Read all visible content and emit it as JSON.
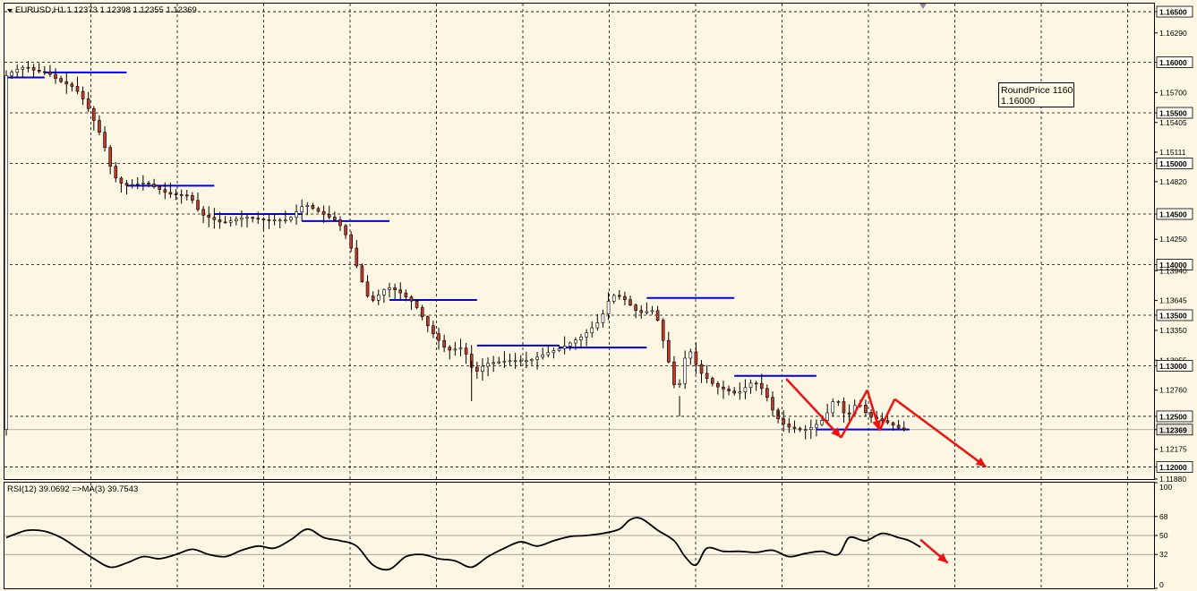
{
  "chart_data": [
    {
      "type": "candlestick",
      "header": "EURUSD,H1  1.12373 1.12398 1.12355 1.12369",
      "ylim": [
        1.1188,
        1.1658
      ],
      "y_tick_labels": [
        "1.16500",
        "1.16290",
        "1.16000",
        "1.15700",
        "1.15500",
        "1.15405",
        "1.15111",
        "1.15000",
        "1.14820",
        "1.14500",
        "1.14250",
        "1.14000",
        "1.13940",
        "1.13645",
        "1.13500",
        "1.13350",
        "1.13055",
        "1.13000",
        "1.12760",
        "1.12500",
        "1.12369",
        "1.12175",
        "1.12000",
        "1.11880"
      ],
      "round_levels": [
        1.165,
        1.16,
        1.155,
        1.15,
        1.145,
        1.14,
        1.135,
        1.13,
        1.125,
        1.12
      ],
      "current_price": "1.12369",
      "annotation": {
        "line1": "RoundPrice 1160",
        "line2": "1.16000"
      },
      "path_points": [
        [
          0,
          1.1585
        ],
        [
          2,
          1.1592
        ],
        [
          4,
          1.1596
        ],
        [
          6,
          1.1591
        ],
        [
          8,
          1.159
        ],
        [
          10,
          1.1582
        ],
        [
          13,
          1.1575
        ],
        [
          15,
          1.156
        ],
        [
          18,
          1.1525
        ],
        [
          20,
          1.1488
        ],
        [
          22,
          1.1478
        ],
        [
          26,
          1.1481
        ],
        [
          30,
          1.147
        ],
        [
          34,
          1.1468
        ],
        [
          36,
          1.145
        ],
        [
          40,
          1.1441
        ],
        [
          44,
          1.1447
        ],
        [
          48,
          1.1444
        ],
        [
          52,
          1.1444
        ],
        [
          55,
          1.146
        ],
        [
          58,
          1.1451
        ],
        [
          61,
          1.1443
        ],
        [
          63,
          1.1425
        ],
        [
          65,
          1.139
        ],
        [
          67,
          1.1362
        ],
        [
          70,
          1.1378
        ],
        [
          72,
          1.1374
        ],
        [
          75,
          1.1362
        ],
        [
          78,
          1.1335
        ],
        [
          81,
          1.1315
        ],
        [
          84,
          1.1318
        ],
        [
          86,
          1.1292
        ],
        [
          88,
          1.1302
        ],
        [
          92,
          1.1305
        ],
        [
          96,
          1.1305
        ],
        [
          99,
          1.1312
        ],
        [
          102,
          1.1318
        ],
        [
          106,
          1.133
        ],
        [
          109,
          1.1345
        ],
        [
          111,
          1.137
        ],
        [
          113,
          1.1368
        ],
        [
          116,
          1.1352
        ],
        [
          119,
          1.1355
        ],
        [
          121,
          1.1315
        ],
        [
          123,
          1.127
        ],
        [
          125,
          1.132
        ],
        [
          127,
          1.1295
        ],
        [
          130,
          1.128
        ],
        [
          134,
          1.1272
        ],
        [
          137,
          1.1285
        ],
        [
          139,
          1.1275
        ],
        [
          141,
          1.125
        ],
        [
          143,
          1.124
        ],
        [
          146,
          1.1236
        ],
        [
          148,
          1.124
        ],
        [
          150,
          1.1248
        ],
        [
          152,
          1.127
        ],
        [
          154,
          1.1248
        ],
        [
          156,
          1.1265
        ],
        [
          158,
          1.125
        ],
        [
          161,
          1.1245
        ],
        [
          163,
          1.124
        ],
        [
          164,
          1.1237
        ]
      ],
      "support_resistance": [
        [
          0,
          7,
          1.1585
        ],
        [
          7,
          22,
          1.159
        ],
        [
          22,
          38,
          1.1478
        ],
        [
          38,
          54,
          1.145
        ],
        [
          54,
          70,
          1.1443
        ],
        [
          70,
          86,
          1.1365
        ],
        [
          86,
          101,
          1.132
        ],
        [
          101,
          117,
          1.1318
        ],
        [
          117,
          133,
          1.1367
        ],
        [
          133,
          148,
          1.129
        ],
        [
          148,
          165,
          1.1237
        ]
      ],
      "projection": [
        [
          142.5,
          1.1287
        ],
        [
          152.5,
          1.1229
        ],
        [
          157.3,
          1.1276
        ],
        [
          159.5,
          1.1236
        ],
        [
          162.3,
          1.1267
        ],
        [
          179,
          1.12
        ]
      ],
      "x_max": 210
    },
    {
      "type": "line",
      "title": "RSI(12) 39.0692  =>MA(3) 39.7543",
      "ylim": [
        0,
        100
      ],
      "y_tick_labels": [
        "100",
        "68",
        "50",
        "32",
        "0"
      ],
      "levels": [
        68,
        50,
        32
      ],
      "x": [
        0,
        2,
        4,
        7,
        10,
        13,
        16,
        19,
        22,
        25,
        28,
        31,
        34,
        37,
        40,
        43,
        46,
        49,
        52,
        55,
        58,
        61,
        64,
        67,
        70,
        73,
        76,
        79,
        82,
        85,
        88,
        91,
        94,
        97,
        100,
        103,
        106,
        109,
        112,
        114,
        116,
        119,
        122,
        124,
        126,
        128,
        131,
        134,
        137,
        140,
        143,
        146,
        149,
        152,
        154,
        157,
        160,
        163,
        165,
        167
      ],
      "values": [
        48,
        52,
        55,
        54,
        48,
        38,
        28,
        20,
        24,
        30,
        28,
        32,
        37,
        32,
        30,
        36,
        40,
        38,
        46,
        56,
        48,
        45,
        40,
        22,
        18,
        30,
        32,
        28,
        26,
        20,
        30,
        38,
        44,
        40,
        45,
        49,
        50,
        52,
        56,
        65,
        66,
        55,
        45,
        30,
        22,
        38,
        35,
        35,
        34,
        36,
        30,
        33,
        35,
        32,
        48,
        45,
        52,
        48,
        45,
        39
      ],
      "projection": [
        [
          167,
          46
        ],
        [
          172,
          24
        ]
      ]
    }
  ]
}
